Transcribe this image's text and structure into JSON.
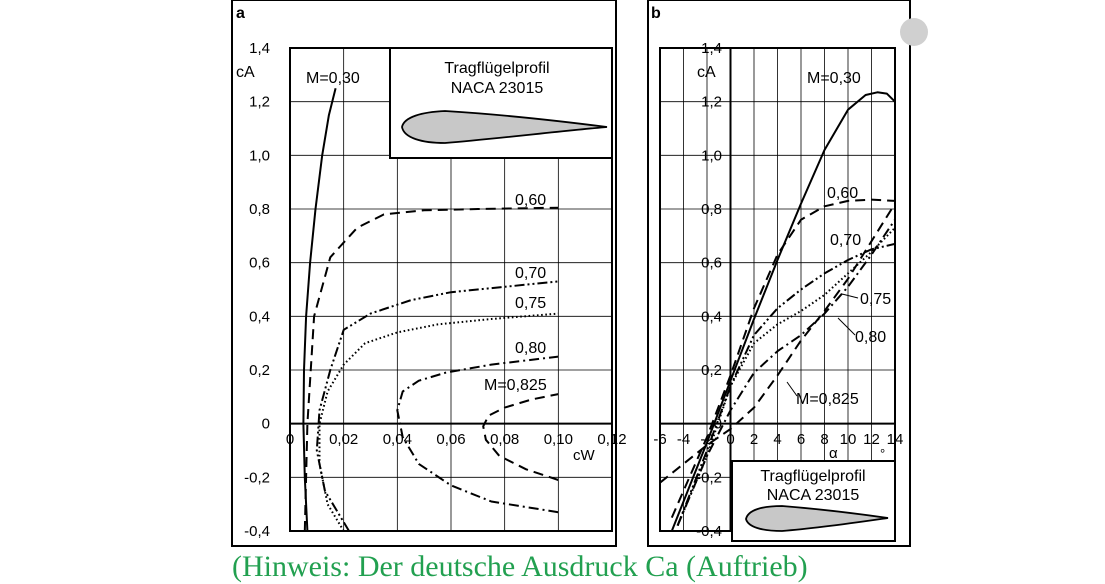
{
  "chart_data": [
    {
      "panel": "a",
      "type": "line",
      "panel_label": "a",
      "xlabel": "cW",
      "ylabel": "cA",
      "xlim": [
        0,
        0.12
      ],
      "ylim": [
        -0.4,
        1.4
      ],
      "x_ticks": [
        "0",
        "0,02",
        "0,04",
        "0,06",
        "0,08",
        "0,10",
        "0,12"
      ],
      "y_ticks": [
        "-0,4",
        "-0,2",
        "0",
        "0,2",
        "0,4",
        "0,6",
        "0,8",
        "1,0",
        "1,2",
        "1,4"
      ],
      "grid": true,
      "inset": {
        "title_line1": "Tragflügelprofil",
        "title_line2": "NACA 23015"
      },
      "series": [
        {
          "name": "M=0,30",
          "style": "solid",
          "label": "M=0,30",
          "x": [
            0.0065,
            0.0055,
            0.005,
            0.0052,
            0.006,
            0.0075,
            0.0095,
            0.012,
            0.0145,
            0.017
          ],
          "y": [
            -0.4,
            -0.2,
            0.0,
            0.2,
            0.4,
            0.6,
            0.8,
            1.0,
            1.15,
            1.25
          ]
        },
        {
          "name": "0,60",
          "style": "dash",
          "label": "0,60",
          "x": [
            0.0055,
            0.0065,
            0.009,
            0.015,
            0.025,
            0.035,
            0.05,
            0.07,
            0.1
          ],
          "y": [
            -0.4,
            0.0,
            0.4,
            0.62,
            0.73,
            0.78,
            0.795,
            0.8,
            0.805
          ]
        },
        {
          "name": "0,70",
          "style": "dashdotdot",
          "label": "0,70",
          "x": [
            0.022,
            0.013,
            0.01,
            0.011,
            0.015,
            0.02,
            0.03,
            0.045,
            0.06,
            0.08,
            0.1
          ],
          "y": [
            -0.4,
            -0.25,
            -0.1,
            0.05,
            0.2,
            0.35,
            0.41,
            0.46,
            0.49,
            0.51,
            0.53
          ]
        },
        {
          "name": "0,75",
          "style": "dot",
          "label": "0,75",
          "x": [
            0.02,
            0.014,
            0.011,
            0.011,
            0.014,
            0.02,
            0.028,
            0.04,
            0.055,
            0.075,
            0.1
          ],
          "y": [
            -0.4,
            -0.3,
            -0.15,
            0.0,
            0.12,
            0.22,
            0.3,
            0.34,
            0.37,
            0.39,
            0.41
          ]
        },
        {
          "name": "0,80",
          "style": "dashdot",
          "label": "0,80",
          "x": [
            0.1,
            0.075,
            0.06,
            0.048,
            0.042,
            0.04,
            0.042,
            0.048,
            0.058,
            0.075,
            0.1
          ],
          "y": [
            -0.33,
            -0.29,
            -0.23,
            -0.15,
            -0.05,
            0.05,
            0.12,
            0.16,
            0.19,
            0.22,
            0.25
          ]
        },
        {
          "name": "M=0,825",
          "style": "dash",
          "label": "M=0,825",
          "x": [
            0.1,
            0.088,
            0.078,
            0.073,
            0.072,
            0.074,
            0.08,
            0.09,
            0.1
          ],
          "y": [
            -0.21,
            -0.17,
            -0.12,
            -0.06,
            -0.01,
            0.03,
            0.06,
            0.09,
            0.11
          ]
        }
      ]
    },
    {
      "panel": "b",
      "type": "line",
      "panel_label": "b",
      "xlabel": "α",
      "x_unit": "°",
      "ylabel": "cA",
      "xlim": [
        -6,
        14
      ],
      "ylim": [
        -0.4,
        1.4
      ],
      "x_ticks": [
        "-6",
        "-4",
        "-2",
        "0",
        "2",
        "4",
        "6",
        "8",
        "10",
        "12",
        "14"
      ],
      "y_ticks": [
        "-0,4",
        "-0,2",
        "0",
        "0,2",
        "0,4",
        "0,6",
        "0,8",
        "1,0",
        "1,2",
        "1,4"
      ],
      "grid": true,
      "inset": {
        "title_line1": "Tragflügelprofil",
        "title_line2": "NACA 23015"
      },
      "series": [
        {
          "name": "M=0,30",
          "style": "solid",
          "label": "M=0,30",
          "x": [
            -5,
            -2,
            0,
            2,
            4,
            6,
            8,
            10,
            11.5,
            12.5,
            13.3,
            14
          ],
          "y": [
            -0.4,
            -0.07,
            0.16,
            0.39,
            0.61,
            0.82,
            1.02,
            1.17,
            1.225,
            1.235,
            1.23,
            1.2
          ]
        },
        {
          "name": "0,60",
          "style": "dash",
          "label": "0,60",
          "x": [
            -5,
            -2,
            0,
            2,
            4,
            6,
            8,
            10,
            12,
            14
          ],
          "y": [
            -0.35,
            -0.05,
            0.18,
            0.43,
            0.63,
            0.76,
            0.81,
            0.83,
            0.835,
            0.83
          ]
        },
        {
          "name": "0,70",
          "style": "dashdotdot",
          "label": "0,70",
          "x": [
            -4.5,
            -2,
            0,
            2,
            4,
            6,
            8,
            10,
            12,
            14
          ],
          "y": [
            -0.38,
            -0.1,
            0.14,
            0.33,
            0.43,
            0.5,
            0.56,
            0.61,
            0.65,
            0.67
          ]
        },
        {
          "name": "0,75",
          "style": "dot",
          "label": "0,75",
          "x": [
            -4.5,
            -2,
            0,
            2,
            4,
            6,
            8,
            10,
            12,
            14
          ],
          "y": [
            -0.38,
            -0.12,
            0.14,
            0.3,
            0.37,
            0.42,
            0.48,
            0.56,
            0.64,
            0.73
          ]
        },
        {
          "name": "0,80",
          "style": "dashdot",
          "label": "0,80",
          "x": [
            -4.5,
            -2,
            0,
            2,
            4,
            6,
            8,
            10,
            12,
            14
          ],
          "y": [
            -0.38,
            -0.12,
            0.05,
            0.19,
            0.27,
            0.33,
            0.41,
            0.51,
            0.63,
            0.76
          ]
        },
        {
          "name": "M=0,825",
          "style": "dash",
          "label": "M=0,825",
          "x": [
            -6,
            -2,
            0,
            2,
            4,
            6,
            8,
            10,
            12,
            14
          ],
          "y": [
            -0.22,
            -0.08,
            -0.02,
            0.06,
            0.18,
            0.31,
            0.42,
            0.54,
            0.68,
            0.82
          ]
        }
      ]
    }
  ],
  "note": "(Hinweis: Der deutsche Ausdruck Ca (Auftrieb)"
}
